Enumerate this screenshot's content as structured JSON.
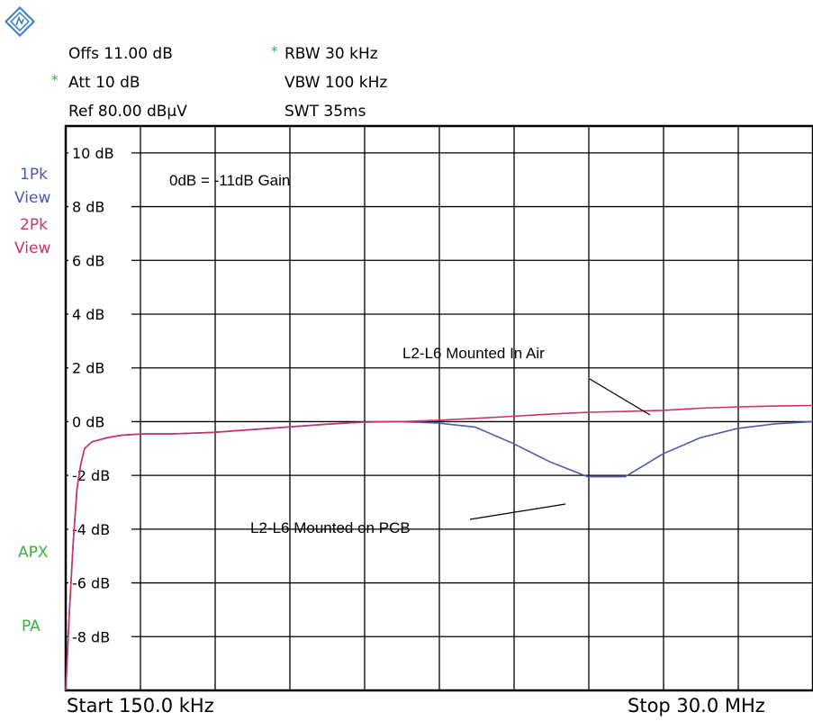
{
  "header": {
    "offs": "Offs 11.00 dB",
    "att": "Att  10 dB",
    "ref": "Ref  80.00 dBµV",
    "rbw": "RBW 30 kHz",
    "vbw": "VBW 100 kHz",
    "swt": "SWT 35ms",
    "star_glyph": "*"
  },
  "side_labels": {
    "trace1_mode": "1Pk",
    "trace1_view": "View",
    "trace2_mode": "2Pk",
    "trace2_view": "View",
    "apx": "APX",
    "pa": "PA"
  },
  "footer": {
    "start": "Start 150.0 kHz",
    "stop": "Stop 30.0 MHz"
  },
  "colors": {
    "trace_pcb": "#4d5ba8",
    "trace_air": "#c8336a",
    "side_blue": "#4a58b0",
    "side_red": "#c8336a",
    "side_green": "#3cb043",
    "star": "#3cb043"
  },
  "chart_data": {
    "type": "line",
    "title": "",
    "xlabel": "",
    "ylabel": "",
    "x_start_mhz": 0.15,
    "x_stop_mhz": 30.0,
    "x_scale": "linear",
    "ylim": [
      -10,
      11
    ],
    "y_ticks": [
      10,
      8,
      6,
      4,
      2,
      0,
      -2,
      -4,
      -6,
      -8
    ],
    "y_tick_labels": [
      "10 dB",
      "8 dB",
      "6 dB",
      "4 dB",
      "2 dB",
      "0 dB",
      "-2 dB",
      "-4 dB",
      "-6 dB",
      "-8 dB"
    ],
    "grid": true,
    "grid_x_divisions": 10,
    "annotations": [
      {
        "text": "0dB = -11dB Gain"
      },
      {
        "text": "L2-L6 Mounted In Air"
      },
      {
        "text": "L2-L6 Mounted on PCB"
      }
    ],
    "series": [
      {
        "color": "#4d5ba8",
        "x": [
          0.15,
          0.3,
          0.45,
          0.6,
          0.75,
          0.9,
          1.2,
          1.8,
          2.4,
          3.3,
          4.5,
          6.0,
          7.5,
          9.0,
          10.5,
          12.0,
          13.5,
          15.0,
          16.5,
          18.0,
          19.5,
          21.0,
          22.5,
          24.0,
          25.5,
          27.0,
          28.5,
          30.0
        ],
        "y": [
          -10.0,
          -7.0,
          -4.5,
          -2.5,
          -1.6,
          -1.0,
          -0.75,
          -0.6,
          -0.5,
          -0.45,
          -0.45,
          -0.4,
          -0.3,
          -0.2,
          -0.1,
          -0.02,
          0.0,
          -0.05,
          -0.2,
          -0.8,
          -1.5,
          -2.05,
          -2.05,
          -1.2,
          -0.6,
          -0.25,
          -0.08,
          0.0
        ]
      },
      {
        "color": "#c8336a",
        "x": [
          0.15,
          0.3,
          0.45,
          0.6,
          0.75,
          0.9,
          1.2,
          1.8,
          2.4,
          3.3,
          4.5,
          6.0,
          7.5,
          9.0,
          10.5,
          12.0,
          13.5,
          15.0,
          16.5,
          18.0,
          19.5,
          21.0,
          22.5,
          24.0,
          25.5,
          27.0,
          28.5,
          30.0
        ],
        "y": [
          -10.0,
          -7.0,
          -4.5,
          -2.5,
          -1.6,
          -1.0,
          -0.75,
          -0.6,
          -0.5,
          -0.45,
          -0.45,
          -0.4,
          -0.3,
          -0.2,
          -0.1,
          -0.02,
          0.0,
          0.05,
          0.12,
          0.2,
          0.28,
          0.35,
          0.38,
          0.42,
          0.5,
          0.55,
          0.58,
          0.6
        ]
      }
    ]
  }
}
